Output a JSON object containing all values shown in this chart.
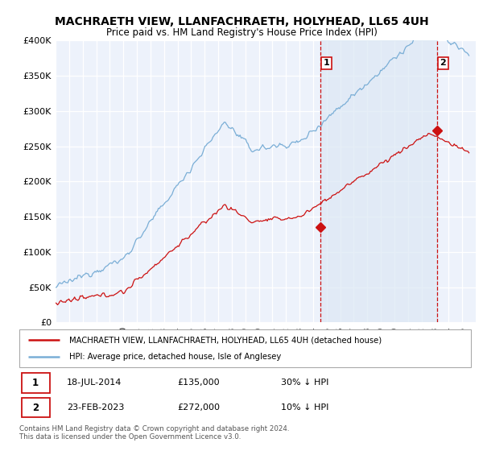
{
  "title": "MACHRAETH VIEW, LLANFACHRAETH, HOLYHEAD, LL65 4UH",
  "subtitle": "Price paid vs. HM Land Registry's House Price Index (HPI)",
  "ylabel_ticks": [
    "£0",
    "£50K",
    "£100K",
    "£150K",
    "£200K",
    "£250K",
    "£300K",
    "£350K",
    "£400K"
  ],
  "ytick_vals": [
    0,
    50000,
    100000,
    150000,
    200000,
    250000,
    300000,
    350000,
    400000
  ],
  "ylim": [
    0,
    400000
  ],
  "xlim_start": 1995.0,
  "xlim_end": 2026.0,
  "hpi_color": "#7aaed6",
  "hpi_fill_color": "#dce8f5",
  "price_color": "#cc1111",
  "marker1_date": 2014.54,
  "marker1_price": 135000,
  "marker1_label": "1",
  "marker2_date": 2023.15,
  "marker2_price": 272000,
  "marker2_label": "2",
  "legend_line1": "MACHRAETH VIEW, LLANFACHRAETH, HOLYHEAD, LL65 4UH (detached house)",
  "legend_line2": "HPI: Average price, detached house, Isle of Anglesey",
  "annotation1_date": "18-JUL-2014",
  "annotation1_price": "£135,000",
  "annotation1_hpi": "30% ↓ HPI",
  "annotation2_date": "23-FEB-2023",
  "annotation2_price": "£272,000",
  "annotation2_hpi": "10% ↓ HPI",
  "footer": "Contains HM Land Registry data © Crown copyright and database right 2024.\nThis data is licensed under the Open Government Licence v3.0.",
  "background_color": "#ffffff",
  "plot_bg_color": "#edf2fb"
}
